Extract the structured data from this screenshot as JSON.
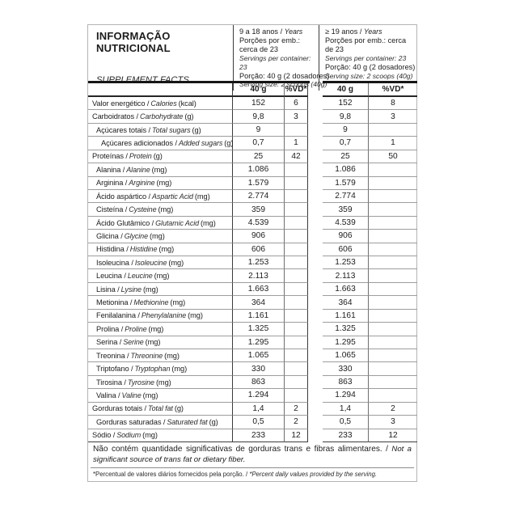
{
  "header": {
    "title_pt": "INFORMAÇÃO NUTRICIONAL",
    "title_en": "SUPPLEMENT FACTS",
    "amount_label": "40 g",
    "dv_label": "%VD*",
    "groups": [
      {
        "age_pt": "9 a 18 anos /",
        "age_en": "Years",
        "servings_pt": "Porções por emb.: cerca de 23",
        "servings_en": "Servings per container: 23",
        "portion_pt": "Porção: 40 g (2 dosadores)",
        "portion_en": "Serving size: 2 scoops (40g)"
      },
      {
        "age_pt": "≥ 19 anos /",
        "age_en": "Years",
        "servings_pt": "Porções por emb.: cerca de 23",
        "servings_en": "Servings per container: 23",
        "portion_pt": "Porção: 40 g (2 dosadores)",
        "portion_en": "Serving size: 2 scoops (40g)"
      }
    ]
  },
  "rows": [
    {
      "label_pt": "Valor energético /",
      "label_en": "Calories",
      "unit": "(kcal)",
      "indent": 0,
      "g1_amount": "152",
      "g1_dv": "6",
      "g2_amount": "152",
      "g2_dv": "8"
    },
    {
      "label_pt": "Carboidratos /",
      "label_en": "Carbohydrate",
      "unit": "(g)",
      "indent": 0,
      "g1_amount": "9,8",
      "g1_dv": "3",
      "g2_amount": "9,8",
      "g2_dv": "3"
    },
    {
      "label_pt": "Açúcares totais /",
      "label_en": "Total sugars",
      "unit": "(g)",
      "indent": 1,
      "g1_amount": "9",
      "g1_dv": "",
      "g2_amount": "9",
      "g2_dv": ""
    },
    {
      "label_pt": "Açúcares adicionados /",
      "label_en": "Added sugars",
      "unit": "(g)",
      "indent": 2,
      "g1_amount": "0,7",
      "g1_dv": "1",
      "g2_amount": "0,7",
      "g2_dv": "1"
    },
    {
      "label_pt": "Proteínas /",
      "label_en": "Protein",
      "unit": "(g)",
      "indent": 0,
      "g1_amount": "25",
      "g1_dv": "42",
      "g2_amount": "25",
      "g2_dv": "50"
    },
    {
      "label_pt": "Alanina /",
      "label_en": "Alanine",
      "unit": "(mg)",
      "indent": 1,
      "g1_amount": "1.086",
      "g1_dv": "",
      "g2_amount": "1.086",
      "g2_dv": ""
    },
    {
      "label_pt": "Arginina /",
      "label_en": "Arginine",
      "unit": "(mg)",
      "indent": 1,
      "g1_amount": "1.579",
      "g1_dv": "",
      "g2_amount": "1.579",
      "g2_dv": ""
    },
    {
      "label_pt": "Ácido aspártico /",
      "label_en": "Aspartic Acid",
      "unit": "(mg)",
      "indent": 1,
      "g1_amount": "2.774",
      "g1_dv": "",
      "g2_amount": "2.774",
      "g2_dv": ""
    },
    {
      "label_pt": "Cisteína /",
      "label_en": "Cysteine",
      "unit": "(mg)",
      "indent": 1,
      "g1_amount": "359",
      "g1_dv": "",
      "g2_amount": "359",
      "g2_dv": ""
    },
    {
      "label_pt": "Ácido Glutâmico /",
      "label_en": "Glutamic Acid",
      "unit": "(mg)",
      "indent": 1,
      "g1_amount": "4.539",
      "g1_dv": "",
      "g2_amount": "4.539",
      "g2_dv": ""
    },
    {
      "label_pt": "Glicina /",
      "label_en": "Glycine",
      "unit": "(mg)",
      "indent": 1,
      "g1_amount": "906",
      "g1_dv": "",
      "g2_amount": "906",
      "g2_dv": ""
    },
    {
      "label_pt": "Histidina /",
      "label_en": "Histidine",
      "unit": "(mg)",
      "indent": 1,
      "g1_amount": "606",
      "g1_dv": "",
      "g2_amount": "606",
      "g2_dv": ""
    },
    {
      "label_pt": "Isoleucina /",
      "label_en": "Isoleucine",
      "unit": "(mg)",
      "indent": 1,
      "g1_amount": "1.253",
      "g1_dv": "",
      "g2_amount": "1.253",
      "g2_dv": ""
    },
    {
      "label_pt": "Leucina /",
      "label_en": "Leucine",
      "unit": "(mg)",
      "indent": 1,
      "g1_amount": "2.113",
      "g1_dv": "",
      "g2_amount": "2.113",
      "g2_dv": ""
    },
    {
      "label_pt": "Lisina /",
      "label_en": "Lysine",
      "unit": "(mg)",
      "indent": 1,
      "g1_amount": "1.663",
      "g1_dv": "",
      "g2_amount": "1.663",
      "g2_dv": ""
    },
    {
      "label_pt": "Metionina /",
      "label_en": "Methionine",
      "unit": "(mg)",
      "indent": 1,
      "g1_amount": "364",
      "g1_dv": "",
      "g2_amount": "364",
      "g2_dv": ""
    },
    {
      "label_pt": "Fenilalanina /",
      "label_en": "Phenylalanine",
      "unit": "(mg)",
      "indent": 1,
      "g1_amount": "1.161",
      "g1_dv": "",
      "g2_amount": "1.161",
      "g2_dv": ""
    },
    {
      "label_pt": "Prolina /",
      "label_en": "Proline",
      "unit": "(mg)",
      "indent": 1,
      "g1_amount": "1.325",
      "g1_dv": "",
      "g2_amount": "1.325",
      "g2_dv": ""
    },
    {
      "label_pt": "Serina /",
      "label_en": "Serine",
      "unit": "(mg)",
      "indent": 1,
      "g1_amount": "1.295",
      "g1_dv": "",
      "g2_amount": "1.295",
      "g2_dv": ""
    },
    {
      "label_pt": "Treonina /",
      "label_en": "Threonine",
      "unit": "(mg)",
      "indent": 1,
      "g1_amount": "1.065",
      "g1_dv": "",
      "g2_amount": "1.065",
      "g2_dv": ""
    },
    {
      "label_pt": "Triptofano /",
      "label_en": "Tryptophan",
      "unit": "(mg)",
      "indent": 1,
      "g1_amount": "330",
      "g1_dv": "",
      "g2_amount": "330",
      "g2_dv": ""
    },
    {
      "label_pt": "Tirosina /",
      "label_en": "Tyrosine",
      "unit": "(mg)",
      "indent": 1,
      "g1_amount": "863",
      "g1_dv": "",
      "g2_amount": "863",
      "g2_dv": ""
    },
    {
      "label_pt": "Valina /",
      "label_en": "Valine",
      "unit": "(mg)",
      "indent": 1,
      "g1_amount": "1.294",
      "g1_dv": "",
      "g2_amount": "1.294",
      "g2_dv": ""
    },
    {
      "label_pt": "Gorduras totais /",
      "label_en": "Total fat",
      "unit": "(g)",
      "indent": 0,
      "g1_amount": "1,4",
      "g1_dv": "2",
      "g2_amount": "1,4",
      "g2_dv": "2"
    },
    {
      "label_pt": "Gorduras saturadas /",
      "label_en": "Saturated fat",
      "unit": "(g)",
      "indent": 1,
      "g1_amount": "0,5",
      "g1_dv": "2",
      "g2_amount": "0,5",
      "g2_dv": "3"
    },
    {
      "label_pt": "Sódio /",
      "label_en": "Sodium",
      "unit": "(mg)",
      "indent": 0,
      "g1_amount": "233",
      "g1_dv": "12",
      "g2_amount": "233",
      "g2_dv": "12"
    }
  ],
  "footer": {
    "note_pt": "Não contém quantidade significativas de gorduras trans e fibras alimentares. /",
    "note_en": "Not a significant source of trans fat or dietary fiber.",
    "footnote_pt": "*Percentual de valores diários fornecidos pela porção. /",
    "footnote_en": "*Percent daily values provided by the serving."
  }
}
